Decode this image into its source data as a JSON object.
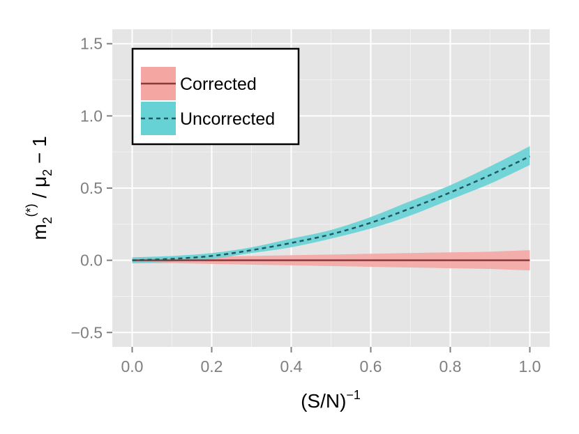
{
  "chart_data": {
    "type": "line",
    "title": "",
    "xlabel": "(S/N)",
    "xlabel_superscript": "−1",
    "ylabel": {
      "main": "m",
      "sub1": "2",
      "sup1": "(*)",
      "mid": " / μ",
      "sub2": "2",
      "tail": " − 1"
    },
    "xlim": [
      -0.05,
      1.05
    ],
    "ylim": [
      -0.6,
      1.6
    ],
    "x_ticks": [
      0.0,
      0.2,
      0.4,
      0.6,
      0.8,
      1.0
    ],
    "x_tick_labels": [
      "0.0",
      "0.2",
      "0.4",
      "0.6",
      "0.8",
      "1.0"
    ],
    "y_ticks": [
      -0.5,
      0.0,
      0.5,
      1.0,
      1.5
    ],
    "y_tick_labels": [
      "−0.5",
      "0.0",
      "0.5",
      "1.0",
      "1.5"
    ],
    "grid": true,
    "legend_position": "top-left",
    "x": [
      0.0,
      0.1,
      0.2,
      0.3,
      0.4,
      0.5,
      0.6,
      0.7,
      0.8,
      0.9,
      1.0
    ],
    "series": [
      {
        "name": "Corrected",
        "line_style": "solid",
        "line_color": "#8b3a3a",
        "fill_color": "#f4a6a3",
        "values": [
          0.0,
          0.0,
          0.0,
          0.0,
          0.0,
          0.0,
          0.0,
          0.0,
          0.0,
          0.0,
          0.0
        ],
        "lower": [
          -0.02,
          -0.02,
          -0.025,
          -0.03,
          -0.035,
          -0.04,
          -0.045,
          -0.05,
          -0.055,
          -0.06,
          -0.07
        ],
        "upper": [
          0.02,
          0.02,
          0.025,
          0.03,
          0.035,
          0.04,
          0.045,
          0.05,
          0.055,
          0.06,
          0.07
        ]
      },
      {
        "name": "Uncorrected",
        "line_style": "dashed",
        "line_color": "#1f5a5e",
        "fill_color": "#66d2d6",
        "values": [
          0.0,
          0.01,
          0.03,
          0.07,
          0.12,
          0.18,
          0.26,
          0.36,
          0.47,
          0.59,
          0.72
        ],
        "lower": [
          -0.02,
          -0.01,
          0.01,
          0.05,
          0.09,
          0.15,
          0.22,
          0.31,
          0.42,
          0.53,
          0.66
        ],
        "upper": [
          0.02,
          0.03,
          0.05,
          0.09,
          0.15,
          0.21,
          0.3,
          0.41,
          0.52,
          0.65,
          0.79
        ]
      }
    ],
    "legend": [
      {
        "label": "Corrected"
      },
      {
        "label": "Uncorrected"
      }
    ],
    "colors": {
      "panel_background": "#e5e5e5",
      "grid_major": "#ffffff",
      "grid_minor": "#f2f2f2",
      "tick_text": "#7f7f7f",
      "legend_border": "#000000"
    }
  }
}
